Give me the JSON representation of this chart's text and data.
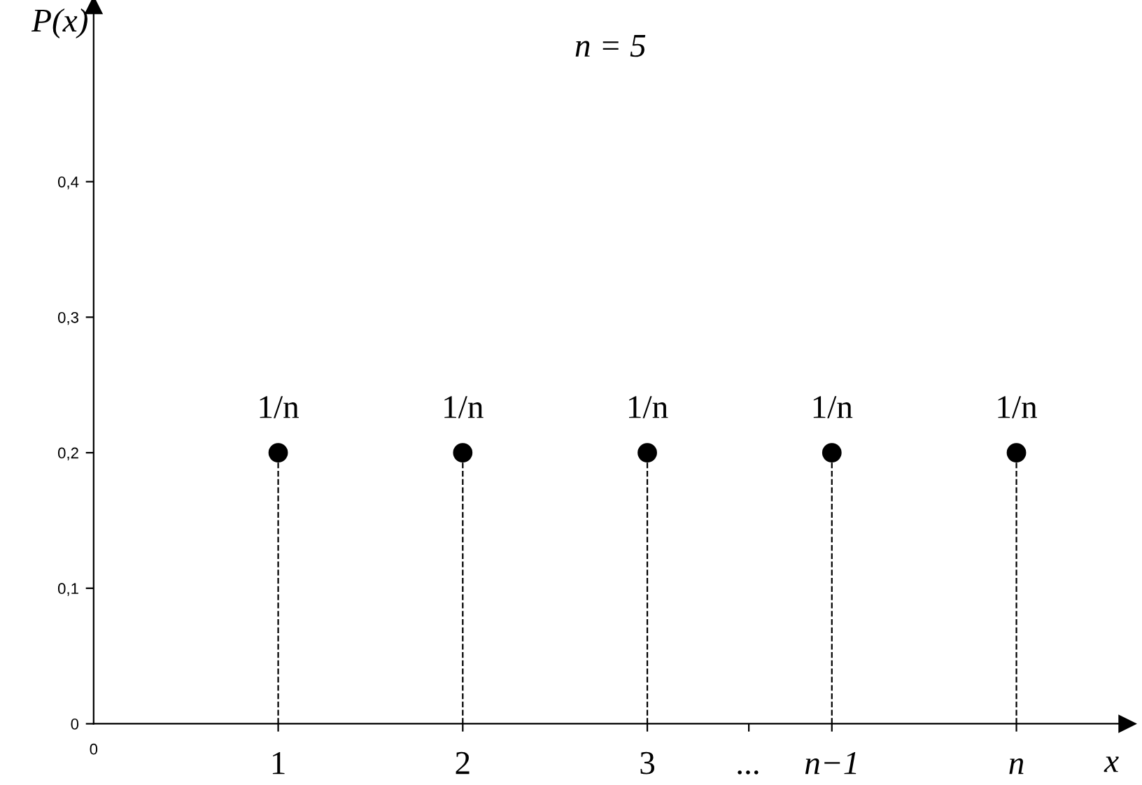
{
  "chart_data": {
    "type": "lollipop",
    "title": "n = 5",
    "xlabel": "x",
    "ylabel": "P(x)",
    "x": [
      1,
      2,
      3,
      4,
      5
    ],
    "values": [
      0.2,
      0.2,
      0.2,
      0.2,
      0.2
    ],
    "annotations": [
      "0",
      {
        "text": "1/n",
        "x": 1,
        "y": 0.2
      },
      {
        "text": "1/n",
        "x": 2,
        "y": 0.2
      },
      {
        "text": "1/n",
        "x": 3,
        "y": 0.2
      },
      {
        "text": "1/n",
        "x": 4,
        "y": 0.2
      },
      {
        "text": "1/n",
        "x": 5,
        "y": 0.2
      }
    ],
    "color": "#000000",
    "marker": "circle",
    "line_style": "dashed",
    "grid": false,
    "xlim": [
      0,
      5.6
    ],
    "ylim": [
      0,
      0.53
    ],
    "xticks": [
      1,
      2,
      3,
      {
        "value": 3.55,
        "label": "..."
      },
      {
        "value": 4,
        "label": "n−1"
      },
      {
        "value": 5,
        "label": "n"
      }
    ],
    "yticks": [
      0,
      {
        "value": 0.1,
        "label": "0,1"
      },
      {
        "value": 0.2,
        "label": "0,2"
      },
      {
        "value": 0.3,
        "label": "0,3"
      },
      {
        "value": 0.4,
        "label": "0,4"
      }
    ]
  }
}
